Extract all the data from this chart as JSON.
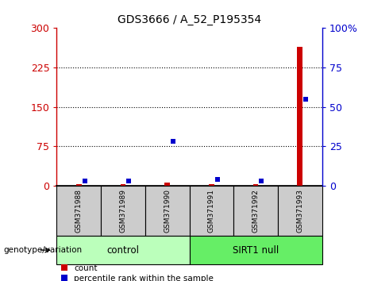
{
  "title": "GDS3666 / A_52_P195354",
  "samples": [
    "GSM371988",
    "GSM371989",
    "GSM371990",
    "GSM371991",
    "GSM371992",
    "GSM371993"
  ],
  "count_values": [
    2,
    2,
    5,
    2,
    2,
    265
  ],
  "percentile_values": [
    3,
    3,
    28,
    4,
    3,
    55
  ],
  "ylim_left": [
    0,
    300
  ],
  "ylim_right": [
    0,
    100
  ],
  "yticks_left": [
    0,
    75,
    150,
    225,
    300
  ],
  "yticks_right": [
    0,
    25,
    50,
    75,
    100
  ],
  "count_color": "#cc0000",
  "percentile_color": "#0000cc",
  "groups": [
    {
      "label": "control",
      "n": 3,
      "color": "#bbffbb"
    },
    {
      "label": "SIRT1 null",
      "n": 3,
      "color": "#66ee66"
    }
  ],
  "grid_color": "#000000",
  "sample_box_color": "#cccccc",
  "genotype_label": "genotype/variation",
  "legend_count": "count",
  "legend_percentile": "percentile rank within the sample",
  "left_tick_color": "#cc0000",
  "right_tick_color": "#0000cc"
}
